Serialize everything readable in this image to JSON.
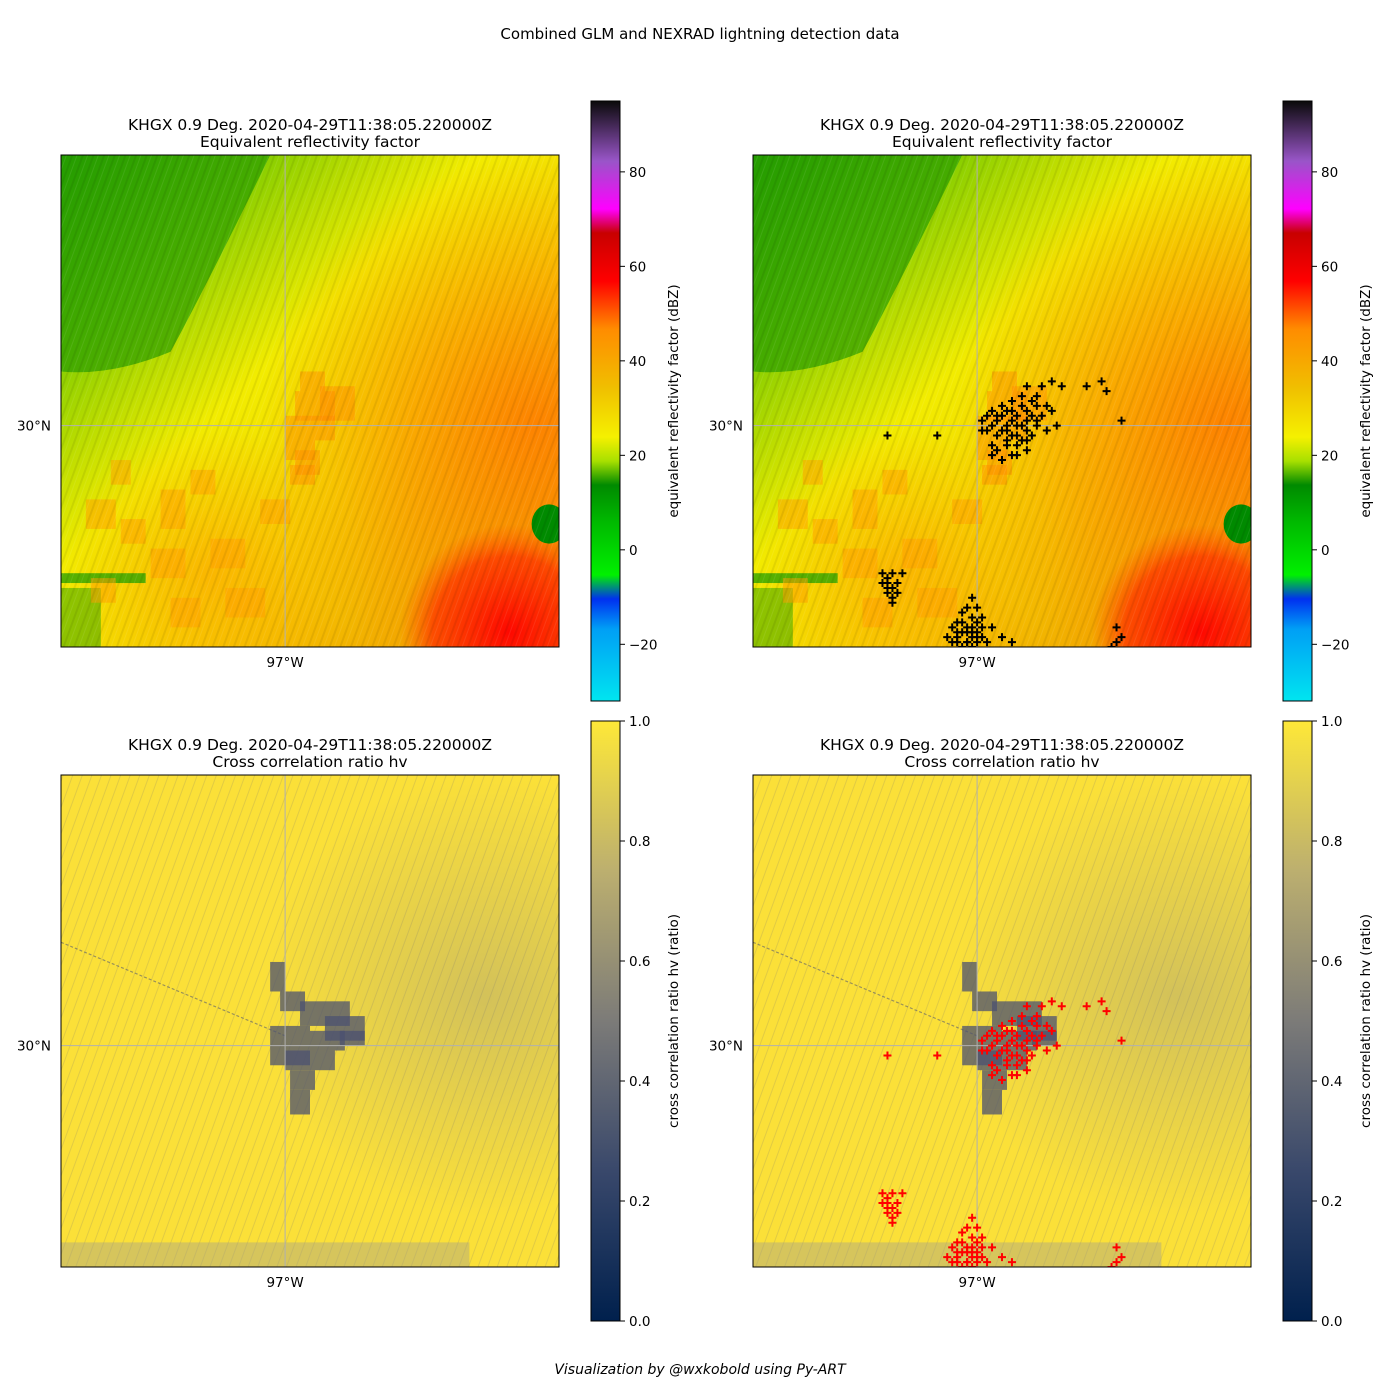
{
  "figure": {
    "suptitle": "Combined GLM and NEXRAD lightning detection data",
    "credit": "Visualization by @wxkobold using Py-ART"
  },
  "colors": {
    "marker_top": "#000000",
    "marker_bottom": "#ff0000",
    "gridline": "#b0b0b0"
  },
  "chart_data": [
    {
      "type": "heatmap",
      "title": "KHGX 0.9 Deg. 2020-04-29T11:38:05.220000Z",
      "subtitle": "Equivalent reflectivity factor",
      "field": "reflectivity",
      "x_tick_labels": [
        "97°W"
      ],
      "y_tick_labels": [
        "30°N"
      ],
      "colorbar": {
        "label": "equivalent reflectivity factor (dBZ)",
        "range": [
          -32,
          95
        ],
        "ticks": [
          -20,
          0,
          20,
          40,
          60,
          80
        ],
        "colormap": "NWSRef"
      },
      "overlay": null
    },
    {
      "type": "heatmap",
      "title": "KHGX 0.9 Deg. 2020-04-29T11:38:05.220000Z",
      "subtitle": "Equivalent reflectivity factor",
      "field": "reflectivity",
      "x_tick_labels": [
        "97°W"
      ],
      "y_tick_labels": [
        "30°N"
      ],
      "colorbar": {
        "label": "equivalent reflectivity factor (dBZ)",
        "range": [
          -32,
          95
        ],
        "ticks": [
          -20,
          0,
          20,
          40,
          60,
          80
        ],
        "colormap": "NWSRef"
      },
      "overlay": {
        "type": "scatter",
        "marker": "+",
        "color": "#000000"
      }
    },
    {
      "type": "heatmap",
      "title": "KHGX 0.9 Deg. 2020-04-29T11:38:05.220000Z",
      "subtitle": "Cross correlation ratio hv",
      "field": "cross_correlation",
      "x_tick_labels": [
        "97°W"
      ],
      "y_tick_labels": [
        "30°N"
      ],
      "colorbar": {
        "label": "cross correlation ratio hv (ratio)",
        "range": [
          0.0,
          1.0
        ],
        "ticks": [
          0.0,
          0.2,
          0.4,
          0.6,
          0.8,
          1.0
        ],
        "colormap": "cividis"
      },
      "overlay": null
    },
    {
      "type": "heatmap",
      "title": "KHGX 0.9 Deg. 2020-04-29T11:38:05.220000Z",
      "subtitle": "Cross correlation ratio hv",
      "field": "cross_correlation",
      "x_tick_labels": [
        "97°W"
      ],
      "y_tick_labels": [
        "30°N"
      ],
      "colorbar": {
        "label": "cross correlation ratio hv (ratio)",
        "range": [
          0.0,
          1.0
        ],
        "ticks": [
          0.0,
          0.2,
          0.4,
          0.6,
          0.8,
          1.0
        ],
        "colormap": "cividis"
      },
      "overlay": {
        "type": "scatter",
        "marker": "+",
        "color": "#ff0000"
      }
    }
  ]
}
